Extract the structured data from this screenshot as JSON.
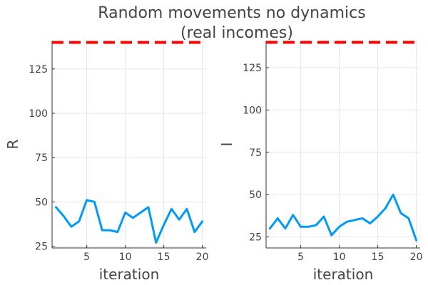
{
  "title_line1": "Random movements no dynamics",
  "title_line2": "(real incomes)",
  "colors": {
    "series": "#009AF9",
    "reference": "#FF0000",
    "grid": "#e6e6e6",
    "axis": "#333333",
    "text": "#444444"
  },
  "chart_data": [
    {
      "type": "line",
      "xlabel": "iteration",
      "ylabel": "R",
      "xlim": [
        0.5,
        20.5
      ],
      "ylim": [
        24,
        141
      ],
      "xticks": [
        5,
        10,
        15,
        20
      ],
      "yticks": [
        25,
        50,
        75,
        100,
        125
      ],
      "grid": true,
      "legend": "none",
      "x": [
        1,
        2,
        3,
        4,
        5,
        6,
        7,
        8,
        9,
        10,
        11,
        12,
        13,
        14,
        15,
        16,
        17,
        18,
        19,
        20
      ],
      "series": [
        {
          "values": [
            47,
            42,
            36,
            39,
            51,
            50,
            34,
            34,
            33,
            44,
            41,
            44,
            47,
            27,
            37,
            46,
            40,
            46,
            33,
            39
          ]
        }
      ],
      "reference_line": {
        "value": 140
      }
    },
    {
      "type": "line",
      "xlabel": "iteration",
      "ylabel": "I",
      "xlim": [
        0.5,
        20.5
      ],
      "ylim": [
        18.5,
        141
      ],
      "xticks": [
        5,
        10,
        15,
        20
      ],
      "yticks": [
        25,
        50,
        75,
        100,
        125
      ],
      "grid": true,
      "legend": "none",
      "x": [
        1,
        2,
        3,
        4,
        5,
        6,
        7,
        8,
        9,
        10,
        11,
        12,
        13,
        14,
        15,
        16,
        17,
        18,
        19,
        20
      ],
      "series": [
        {
          "values": [
            30,
            36,
            30,
            38,
            31,
            31,
            32,
            37,
            26,
            31,
            34,
            35,
            36,
            33,
            37,
            42,
            50,
            39,
            36,
            23
          ]
        }
      ],
      "reference_line": {
        "value": 140
      }
    }
  ]
}
